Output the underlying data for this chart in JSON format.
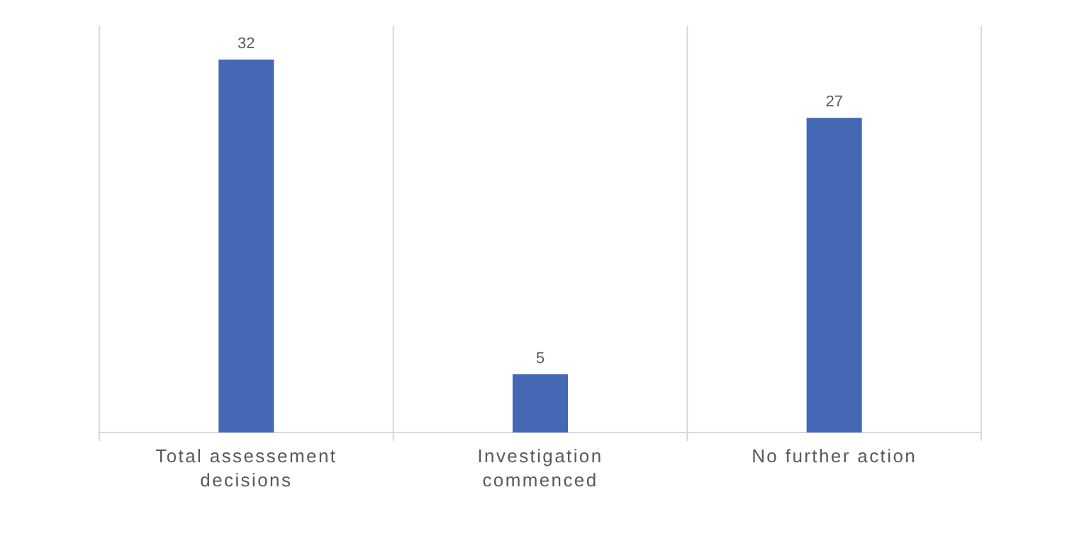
{
  "chart_data": {
    "type": "bar",
    "categories": [
      "Total assessement decisions",
      "Investigation commenced",
      "No further action"
    ],
    "values": [
      32,
      5,
      27
    ],
    "color": "#4468b4",
    "data_labels": true,
    "grid": "x"
  }
}
